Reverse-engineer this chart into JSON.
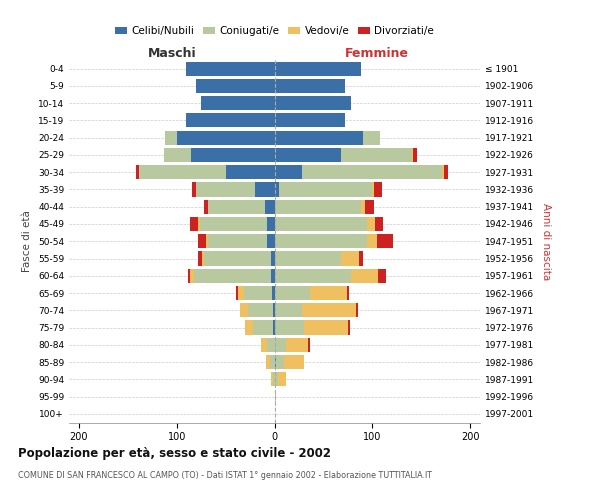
{
  "age_groups": [
    "0-4",
    "5-9",
    "10-14",
    "15-19",
    "20-24",
    "25-29",
    "30-34",
    "35-39",
    "40-44",
    "45-49",
    "50-54",
    "55-59",
    "60-64",
    "65-69",
    "70-74",
    "75-79",
    "80-84",
    "85-89",
    "90-94",
    "95-99",
    "100+"
  ],
  "birth_years": [
    "1997-2001",
    "1992-1996",
    "1987-1991",
    "1982-1986",
    "1977-1981",
    "1972-1976",
    "1967-1971",
    "1962-1966",
    "1957-1961",
    "1952-1956",
    "1947-1951",
    "1942-1946",
    "1937-1941",
    "1932-1936",
    "1927-1931",
    "1922-1926",
    "1917-1921",
    "1912-1916",
    "1907-1911",
    "1902-1906",
    "≤ 1901"
  ],
  "male_celibi": [
    90,
    80,
    75,
    90,
    100,
    85,
    50,
    20,
    10,
    8,
    8,
    4,
    4,
    3,
    2,
    2,
    0,
    0,
    0,
    0,
    0
  ],
  "male_coniugati": [
    0,
    0,
    0,
    0,
    12,
    28,
    88,
    60,
    58,
    68,
    60,
    68,
    78,
    28,
    25,
    20,
    8,
    5,
    2,
    0,
    0
  ],
  "male_vedovi": [
    0,
    0,
    0,
    0,
    0,
    0,
    0,
    0,
    0,
    2,
    2,
    2,
    4,
    6,
    8,
    8,
    6,
    4,
    2,
    0,
    0
  ],
  "male_divorziati": [
    0,
    0,
    0,
    0,
    0,
    0,
    4,
    4,
    4,
    8,
    8,
    4,
    2,
    2,
    0,
    0,
    0,
    0,
    0,
    0,
    0
  ],
  "female_nubili": [
    88,
    72,
    78,
    72,
    90,
    68,
    28,
    5,
    0,
    0,
    0,
    0,
    0,
    0,
    0,
    0,
    0,
    2,
    0,
    0,
    0
  ],
  "female_coniugate": [
    0,
    0,
    0,
    0,
    18,
    72,
    143,
    95,
    88,
    95,
    95,
    68,
    78,
    36,
    28,
    30,
    12,
    8,
    4,
    0,
    0
  ],
  "female_vedove": [
    0,
    0,
    0,
    0,
    0,
    2,
    2,
    2,
    4,
    8,
    10,
    18,
    28,
    38,
    55,
    45,
    22,
    20,
    8,
    2,
    0
  ],
  "female_divorziate": [
    0,
    0,
    0,
    0,
    0,
    4,
    4,
    8,
    10,
    8,
    16,
    4,
    8,
    2,
    2,
    2,
    2,
    0,
    0,
    0,
    0
  ],
  "color_celibi": "#3a6fa8",
  "color_coniugati": "#b8c9a0",
  "color_vedovi": "#f0c060",
  "color_divorziati": "#cc2222",
  "xlim": 210,
  "title": "Popolazione per età, sesso e stato civile - 2002",
  "subtitle": "COMUNE DI SAN FRANCESCO AL CAMPO (TO) - Dati ISTAT 1° gennaio 2002 - Elaborazione TUTTITALIA.IT",
  "label_maschi": "Maschi",
  "label_femmine": "Femmine",
  "ylabel_left": "Fasce di età",
  "ylabel_right": "Anni di nascita",
  "legend_labels": [
    "Celibi/Nubili",
    "Coniugati/e",
    "Vedovi/e",
    "Divorziati/e"
  ]
}
